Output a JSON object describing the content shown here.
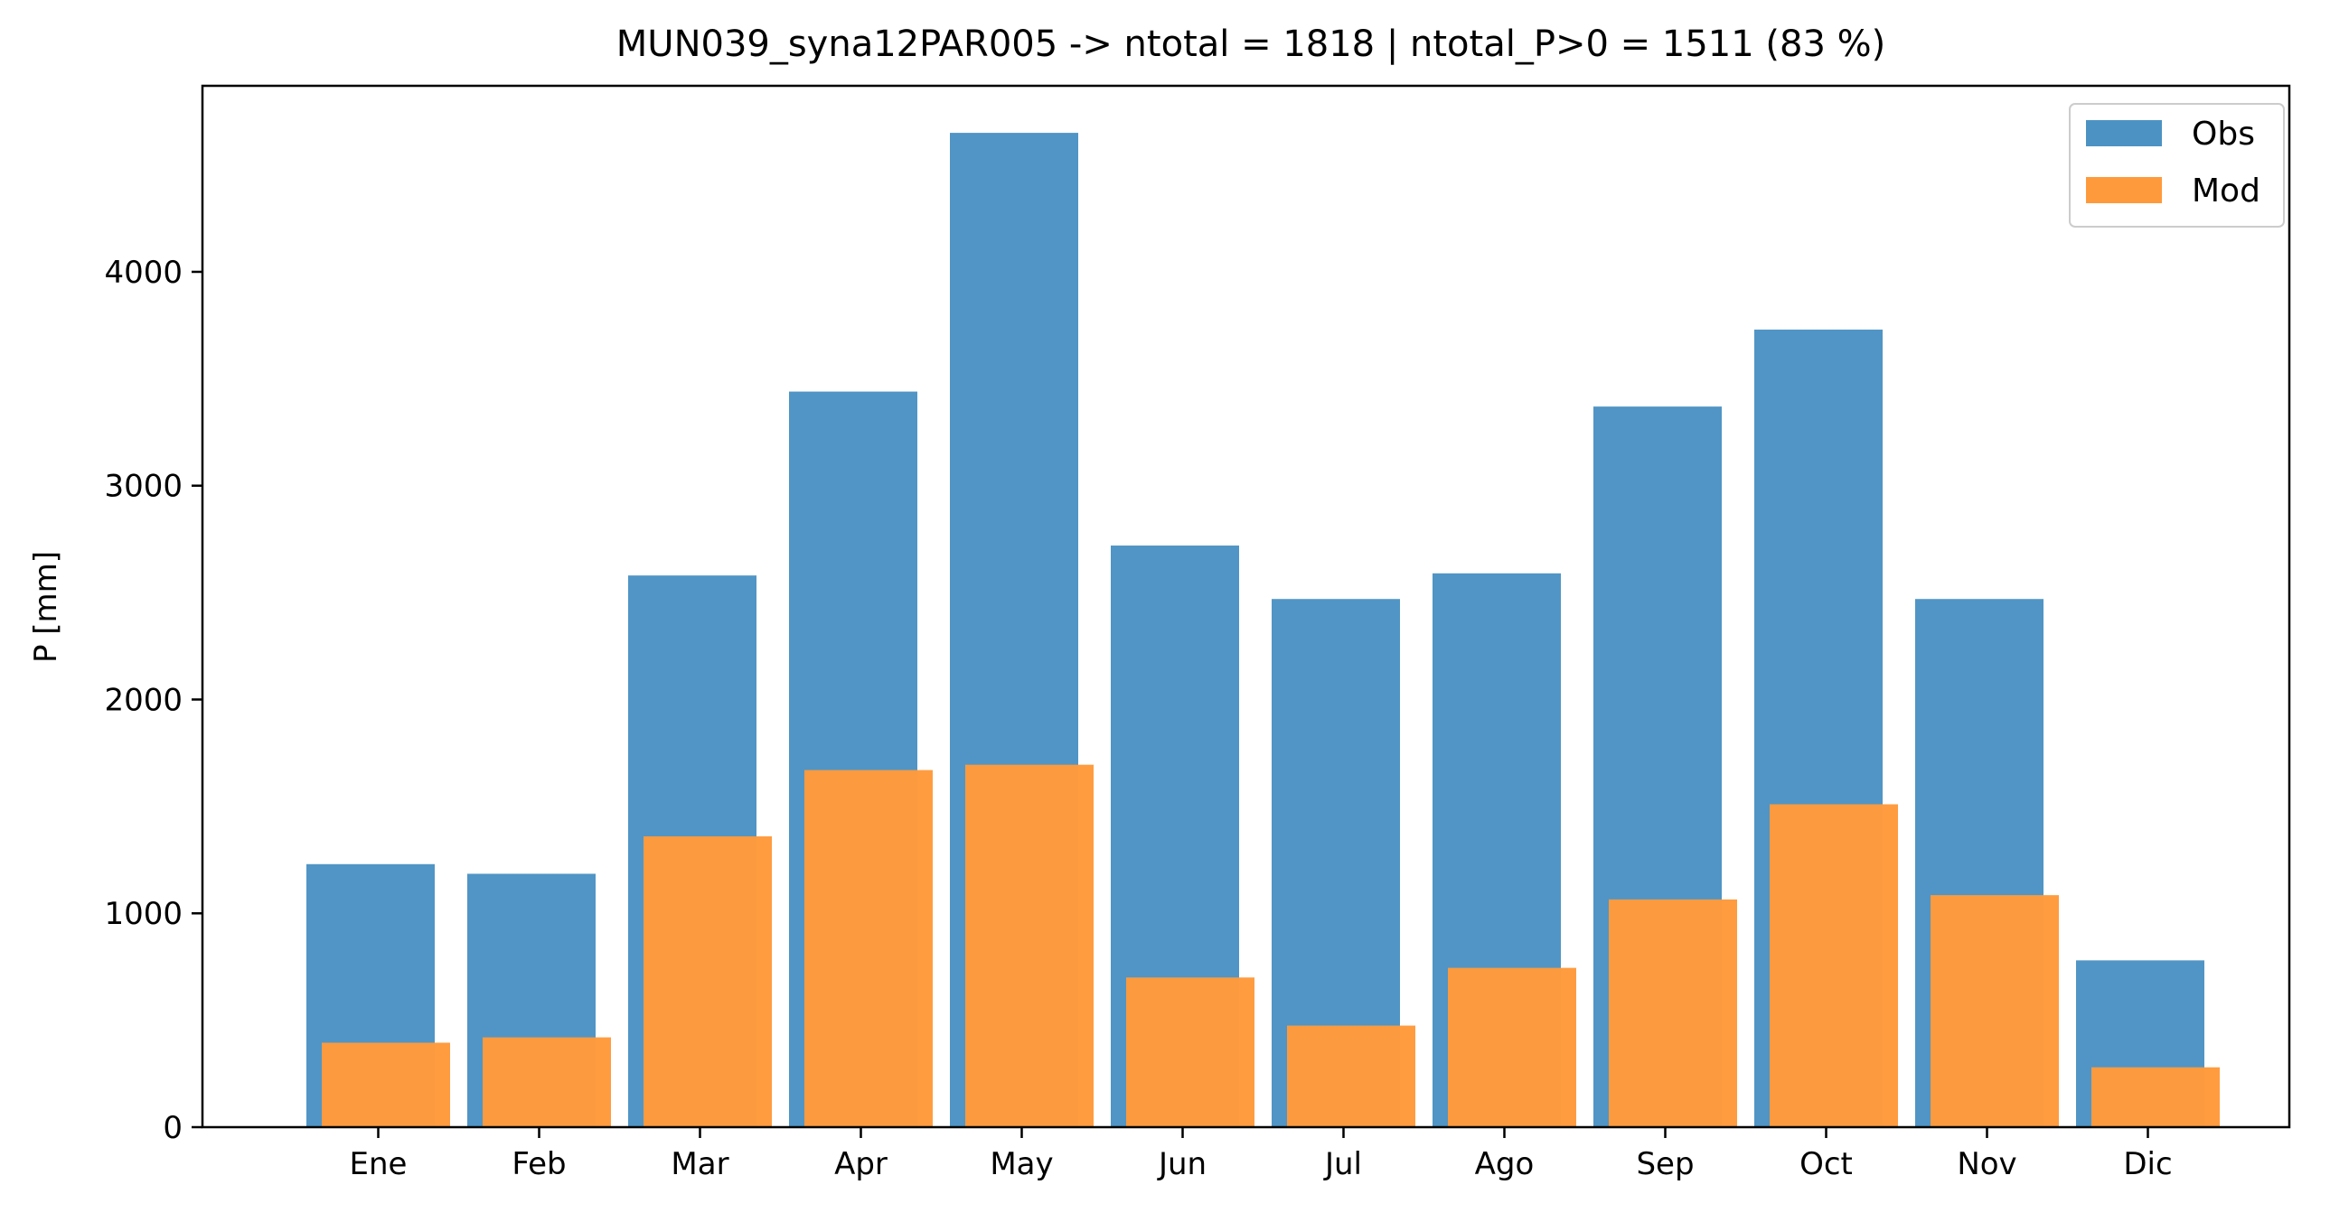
{
  "chart_data": {
    "type": "bar",
    "title": "MUN039_syna12PAR005 -> ntotal = 1818 | ntotal_P>0 = 1511 (83 %)",
    "xlabel": "",
    "ylabel": "P [mm]",
    "categories": [
      "Ene",
      "Feb",
      "Mar",
      "Apr",
      "May",
      "Jun",
      "Jul",
      "Ago",
      "Sep",
      "Oct",
      "Nov",
      "Dic"
    ],
    "series": [
      {
        "name": "Obs",
        "color": "#4c93c4",
        "values": [
          1230,
          1185,
          2580,
          3440,
          4650,
          2720,
          2470,
          2590,
          3370,
          3730,
          2470,
          780
        ]
      },
      {
        "name": "Mod",
        "color": "#ff9a3c",
        "values": [
          395,
          420,
          1360,
          1670,
          1695,
          700,
          475,
          745,
          1065,
          1510,
          1085,
          280
        ]
      }
    ],
    "ylim": [
      0,
      4870
    ],
    "yticks": [
      0,
      1000,
      2000,
      3000,
      4000
    ],
    "grid": false,
    "legend_position": "top-right"
  }
}
